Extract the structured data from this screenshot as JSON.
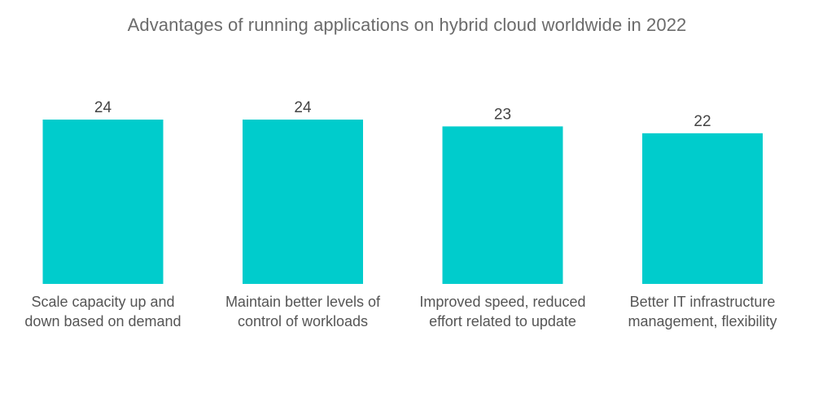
{
  "chart_data": {
    "type": "bar",
    "title": "Advantages of running applications on hybrid cloud worldwide in 2022",
    "categories": [
      [
        "Scale capacity up and",
        "down based on demand"
      ],
      [
        "Maintain better levels of",
        "control of workloads"
      ],
      [
        "Improved speed, reduced",
        "effort related to update"
      ],
      [
        "Better IT infrastructure",
        "management, flexibility"
      ]
    ],
    "values": [
      24,
      24,
      23,
      22
    ],
    "data_labels": [
      "24",
      "24",
      "23",
      "22"
    ],
    "ylim": [
      0,
      24
    ],
    "grid": false,
    "legend": "none",
    "bar_color": "#00cccc"
  }
}
